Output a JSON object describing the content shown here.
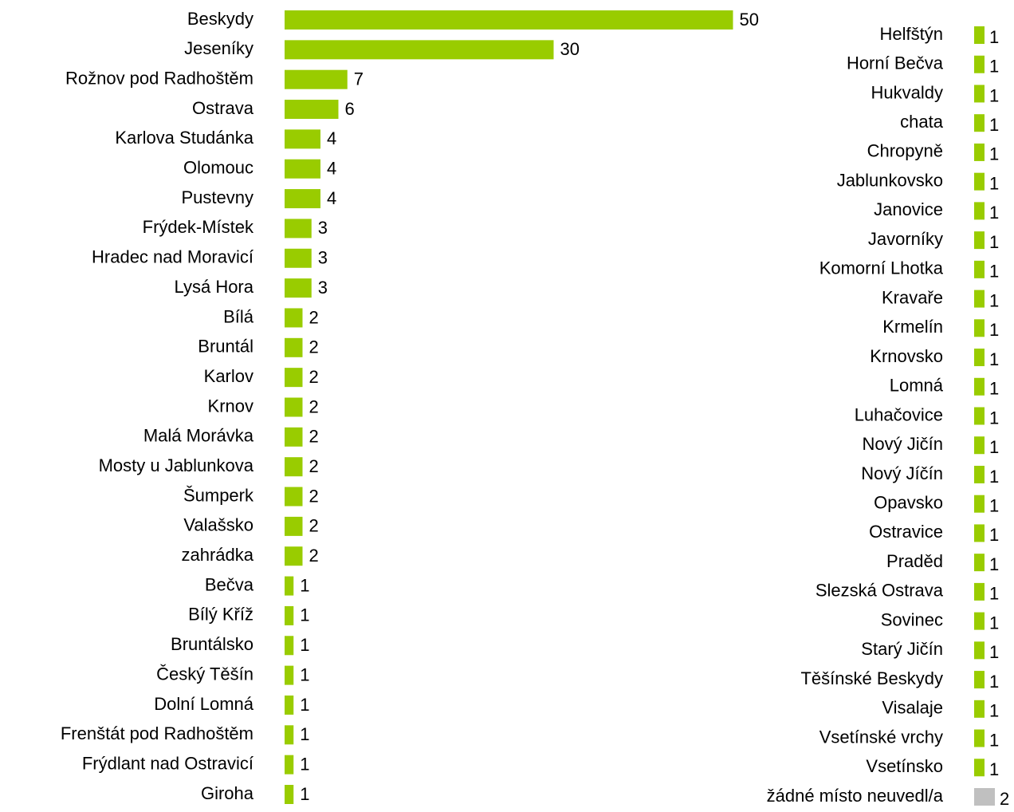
{
  "chart_data": [
    {
      "type": "barh",
      "categories": [
        "Beskydy",
        "Jeseníky",
        "Rožnov pod Radhoštěm",
        "Ostrava",
        "Karlova Studánka",
        "Olomouc",
        "Pustevny",
        "Frýdek-Místek",
        "Hradec nad Moravicí",
        "Lysá Hora",
        "Bílá",
        "Bruntál",
        "Karlov",
        "Krnov",
        "Malá Morávka",
        "Mosty u Jablunkova",
        "Šumperk",
        "Valašsko",
        "zahrádka",
        "Bečva",
        "Bílý Kříž",
        "Bruntálsko",
        "Český Těšín",
        "Dolní Lomná",
        "Frenštát pod Radhoštěm",
        "Frýdlant nad Ostravicí",
        "Giroha"
      ],
      "values": [
        50,
        30,
        7,
        6,
        4,
        4,
        4,
        3,
        3,
        3,
        2,
        2,
        2,
        2,
        2,
        2,
        2,
        2,
        2,
        1,
        1,
        1,
        1,
        1,
        1,
        1,
        1
      ],
      "color": "#99cc00"
    },
    {
      "type": "barh",
      "categories": [
        "Helfštýn",
        "Horní Bečva",
        "Hukvaldy",
        "chata",
        "Chropyně",
        "Jablunkovsko",
        "Janovice",
        "Javorníky",
        "Komorní Lhotka",
        "Kravaře",
        "Krmelín",
        "Krnovsko",
        "Lomná",
        "Luhačovice",
        "Nový Jičín",
        "Nový Jíčín",
        "Opavsko",
        "Ostravice",
        "Praděd",
        "Slezská Ostrava",
        "Sovinec",
        "Starý Jičín",
        "Těšínské Beskydy",
        "Visalaje",
        "Vsetínské vrchy",
        "Vsetínsko",
        "žádné místo neuvedl/a"
      ],
      "values": [
        1,
        1,
        1,
        1,
        1,
        1,
        1,
        1,
        1,
        1,
        1,
        1,
        1,
        1,
        1,
        1,
        1,
        1,
        1,
        1,
        1,
        1,
        1,
        1,
        1,
        1,
        2
      ],
      "colors": [
        "#99cc00",
        "#99cc00",
        "#99cc00",
        "#99cc00",
        "#99cc00",
        "#99cc00",
        "#99cc00",
        "#99cc00",
        "#99cc00",
        "#99cc00",
        "#99cc00",
        "#99cc00",
        "#99cc00",
        "#99cc00",
        "#99cc00",
        "#99cc00",
        "#99cc00",
        "#99cc00",
        "#99cc00",
        "#99cc00",
        "#99cc00",
        "#99cc00",
        "#99cc00",
        "#99cc00",
        "#99cc00",
        "#99cc00",
        "#c0c0c0"
      ]
    }
  ]
}
